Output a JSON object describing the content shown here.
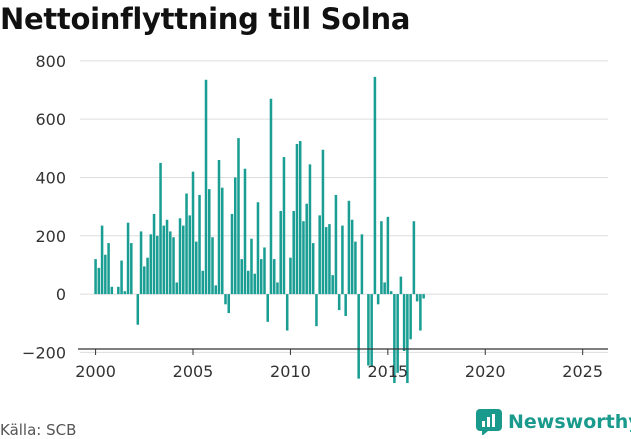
{
  "title": "Nettoinflyttning till Solna",
  "source": "Källa: SCB",
  "brand": "Newsworthy",
  "colors": {
    "bar": "#1a9e93",
    "brand": "#1a9a8c"
  },
  "chart_data": {
    "type": "bar",
    "title": "Nettoinflyttning till Solna",
    "xlabel": "",
    "ylabel": "",
    "ylim": [
      -370,
      820
    ],
    "xlim": [
      1999.2,
      2026.3
    ],
    "yticks": [
      800,
      600,
      400,
      200,
      0,
      -200
    ],
    "ytick_labels": [
      "800",
      "600",
      "400",
      "200",
      "0",
      "−200"
    ],
    "xticks": [
      2000,
      2005,
      2010,
      2015,
      2020,
      2025
    ],
    "xtick_labels": [
      "2000",
      "2005",
      "2010",
      "2015",
      "2020",
      "2025"
    ],
    "grid": true,
    "x_start": 2000.0,
    "x_step": 0.1667,
    "values": [
      120,
      90,
      235,
      135,
      175,
      25,
      0,
      25,
      115,
      10,
      245,
      175,
      0,
      -105,
      215,
      95,
      125,
      205,
      275,
      200,
      450,
      235,
      255,
      215,
      195,
      40,
      260,
      235,
      345,
      270,
      420,
      180,
      340,
      80,
      735,
      360,
      195,
      30,
      460,
      365,
      -35,
      -65,
      275,
      400,
      535,
      120,
      430,
      80,
      190,
      70,
      315,
      120,
      160,
      -95,
      670,
      120,
      40,
      285,
      470,
      -125,
      125,
      285,
      515,
      525,
      250,
      310,
      445,
      175,
      -110,
      270,
      495,
      230,
      240,
      65,
      340,
      -55,
      235,
      -75,
      320,
      255,
      180,
      -290,
      205,
      0,
      -245,
      -250,
      745,
      -35,
      250,
      40,
      265,
      10,
      -305,
      -270,
      60,
      -195,
      -305,
      -155,
      250,
      -25,
      -125,
      -15
    ]
  }
}
